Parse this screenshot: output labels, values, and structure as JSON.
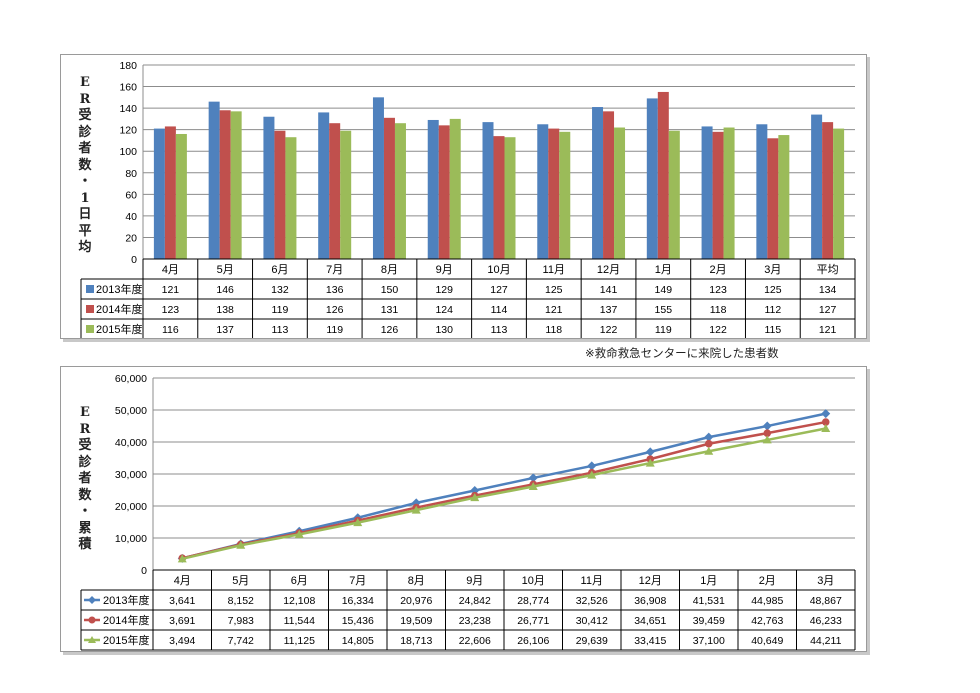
{
  "note": "※救命救急センターに来院した患者数",
  "chart_data": [
    {
      "type": "bar",
      "ylabel": "ER受診者数・1日平均",
      "ylim": [
        0,
        180
      ],
      "yticks": [
        0,
        20,
        40,
        60,
        80,
        100,
        120,
        140,
        160,
        180
      ],
      "grid": true,
      "categories": [
        "4月",
        "5月",
        "6月",
        "7月",
        "8月",
        "9月",
        "10月",
        "11月",
        "12月",
        "1月",
        "2月",
        "3月",
        "平均"
      ],
      "series": [
        {
          "name": "2013年度",
          "color": "#4f81bd",
          "values": [
            121,
            146,
            132,
            136,
            150,
            129,
            127,
            125,
            141,
            149,
            123,
            125,
            134
          ]
        },
        {
          "name": "2014年度",
          "color": "#c0504d",
          "values": [
            123,
            138,
            119,
            126,
            131,
            124,
            114,
            121,
            137,
            155,
            118,
            112,
            127
          ]
        },
        {
          "name": "2015年度",
          "color": "#9bbb59",
          "values": [
            116,
            137,
            113,
            119,
            126,
            130,
            113,
            118,
            122,
            119,
            122,
            115,
            121
          ]
        }
      ]
    },
    {
      "type": "line",
      "ylabel": "ER受診者数・累積",
      "ylim": [
        0,
        60000
      ],
      "yticks": [
        0,
        10000,
        20000,
        30000,
        40000,
        50000,
        60000
      ],
      "ytick_labels": [
        "0",
        "10,000",
        "20,000",
        "30,000",
        "40,000",
        "50,000",
        "60,000"
      ],
      "grid": true,
      "categories": [
        "4月",
        "5月",
        "6月",
        "7月",
        "8月",
        "9月",
        "10月",
        "11月",
        "12月",
        "1月",
        "2月",
        "3月"
      ],
      "series": [
        {
          "name": "2013年度",
          "color": "#4f81bd",
          "marker": "diamond",
          "values": [
            3641,
            8152,
            12108,
            16334,
            20976,
            24842,
            28774,
            32526,
            36908,
            41531,
            44985,
            48867
          ],
          "labels": [
            "3,641",
            "8,152",
            "12,108",
            "16,334",
            "20,976",
            "24,842",
            "28,774",
            "32,526",
            "36,908",
            "41,531",
            "44,985",
            "48,867"
          ]
        },
        {
          "name": "2014年度",
          "color": "#c0504d",
          "marker": "circle",
          "values": [
            3691,
            7983,
            11544,
            15436,
            19509,
            23238,
            26771,
            30412,
            34651,
            39459,
            42763,
            46233
          ],
          "labels": [
            "3,691",
            "7,983",
            "11,544",
            "15,436",
            "19,509",
            "23,238",
            "26,771",
            "30,412",
            "34,651",
            "39,459",
            "42,763",
            "46,233"
          ]
        },
        {
          "name": "2015年度",
          "color": "#9bbb59",
          "marker": "triangle",
          "values": [
            3494,
            7742,
            11125,
            14805,
            18713,
            22606,
            26106,
            29639,
            33415,
            37100,
            40649,
            44211
          ],
          "labels": [
            "3,494",
            "7,742",
            "11,125",
            "14,805",
            "18,713",
            "22,606",
            "26,106",
            "29,639",
            "33,415",
            "37,100",
            "40,649",
            "44,211"
          ]
        }
      ]
    }
  ]
}
